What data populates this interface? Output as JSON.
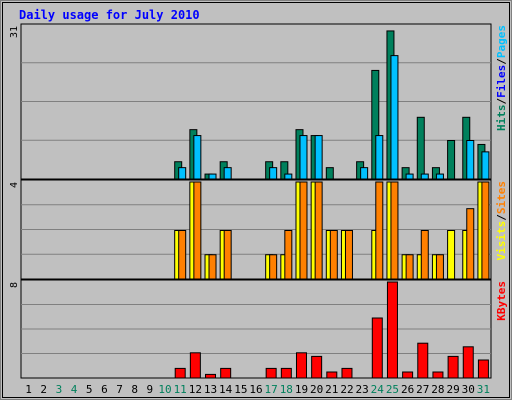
{
  "chart_data": {
    "type": "bar",
    "title": "Daily usage for July 2010",
    "days": [
      1,
      2,
      3,
      4,
      5,
      6,
      7,
      8,
      9,
      10,
      11,
      12,
      13,
      14,
      15,
      16,
      17,
      18,
      19,
      20,
      21,
      22,
      23,
      24,
      25,
      26,
      27,
      28,
      29,
      30,
      31
    ],
    "weekend_days": [
      3,
      4,
      10,
      11,
      17,
      18,
      24,
      25,
      31
    ],
    "panels": [
      {
        "id": "hits-files-pages",
        "max_label": "31",
        "ymax": 31,
        "side_label": [
          {
            "text": "Hits",
            "color": "#00805c"
          },
          {
            "text": "/",
            "color": "#000000"
          },
          {
            "text": "Files",
            "color": "#0000ff"
          },
          {
            "text": "/",
            "color": "#000000"
          },
          {
            "text": "Pages",
            "color": "#00c0ff"
          }
        ],
        "series": [
          {
            "name": "Hits",
            "color": "#00805c",
            "values": [
              0,
              0,
              0,
              0,
              0,
              0,
              0,
              0,
              0,
              0,
              3.5,
              10,
              1,
              3.5,
              0,
              0,
              3.5,
              3.5,
              10,
              8.8,
              2.3,
              0,
              3.5,
              22,
              30,
              2.3,
              12.5,
              2.3,
              7.8,
              12.5,
              7
            ]
          },
          {
            "name": "Files",
            "color": "#00c0ff",
            "values": [
              0,
              0,
              0,
              0,
              0,
              0,
              0,
              0,
              0,
              0,
              2.3,
              8.8,
              1,
              2.3,
              0,
              0,
              2.3,
              1,
              8.8,
              8.8,
              0,
              0,
              2.3,
              8.8,
              25,
              1,
              1,
              1,
              0,
              7.8,
              5.5
            ]
          }
        ]
      },
      {
        "id": "visits-sites",
        "max_label": "4",
        "ymax": 4,
        "side_label": [
          {
            "text": "Visits",
            "color": "#ffff00"
          },
          {
            "text": "/",
            "color": "#000000"
          },
          {
            "text": "Sites",
            "color": "#ff8000"
          }
        ],
        "series": [
          {
            "name": "Visits",
            "color": "#ffff00",
            "values": [
              0,
              0,
              0,
              0,
              0,
              0,
              0,
              0,
              0,
              0,
              2,
              4,
              1,
              2,
              0,
              0,
              1,
              1,
              4,
              4,
              2,
              2,
              0,
              2,
              4,
              1,
              1,
              1,
              2,
              2,
              4
            ]
          },
          {
            "name": "Sites",
            "color": "#ff8000",
            "values": [
              0,
              0,
              0,
              0,
              0,
              0,
              0,
              0,
              0,
              0,
              2,
              4,
              1,
              2,
              0,
              0,
              1,
              2,
              4,
              4,
              2,
              2,
              0,
              4,
              4,
              1,
              2,
              1,
              0,
              2.9,
              4
            ]
          }
        ]
      },
      {
        "id": "kbytes",
        "max_label": "8",
        "ymax": 8,
        "side_label": [
          {
            "text": "KBytes",
            "color": "#ff0000"
          }
        ],
        "series": [
          {
            "name": "KBytes",
            "color": "#ff0000",
            "values": [
              0,
              0,
              0,
              0,
              0,
              0,
              0,
              0,
              0,
              0,
              0.8,
              2.1,
              0.3,
              0.8,
              0,
              0,
              0.8,
              0.8,
              2.1,
              1.8,
              0.5,
              0.8,
              0,
              5,
              8,
              0.5,
              2.9,
              0.5,
              1.8,
              2.6,
              1.5
            ]
          }
        ]
      }
    ]
  }
}
